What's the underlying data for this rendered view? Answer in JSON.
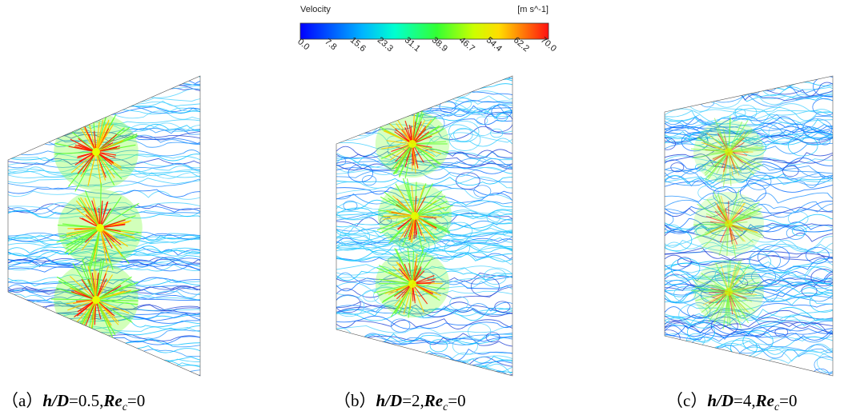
{
  "colorbar": {
    "title": "Velocity",
    "unit": "[m s^-1]",
    "ticks": [
      "0.0",
      "7.8",
      "15.6",
      "23.3",
      "31.1",
      "38.9",
      "46.7",
      "54.4",
      "62.2",
      "70.0"
    ]
  },
  "panels": [
    {
      "label": "（a）",
      "var1": "h/D",
      "val1": "=0.5,",
      "var2": "Re",
      "sub": "c",
      "val2": "=0"
    },
    {
      "label": "（b）",
      "var1": "h/D",
      "val1": "=2,",
      "var2": "Re",
      "sub": "c",
      "val2": "=0"
    },
    {
      "label": "（c）",
      "var1": "h/D",
      "val1": "=4,",
      "var2": "Re",
      "sub": "c",
      "val2": "=0"
    }
  ]
}
